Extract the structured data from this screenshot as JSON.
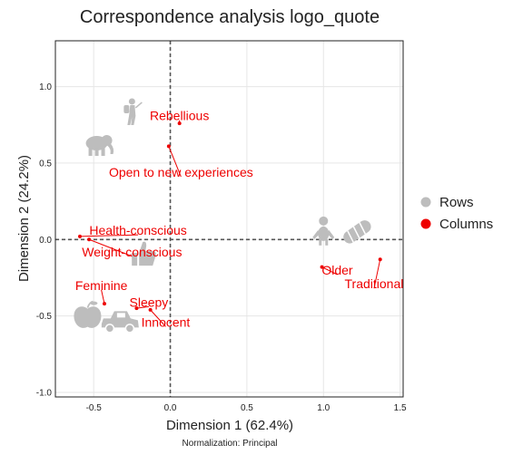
{
  "chart_data": {
    "type": "scatter",
    "title": "Correspondence analysis logo_quote",
    "xlabel": "Dimension 1 (62.4%)",
    "ylabel": "Dimension 2 (24.2%)",
    "note": "Normalization: Principal",
    "xlim": [
      -0.75,
      1.52
    ],
    "ylim": [
      -1.03,
      1.3
    ],
    "x_ticks": [
      {
        "value": -0.5,
        "label": "-0.5"
      },
      {
        "value": 0.0,
        "label": "0.0"
      },
      {
        "value": 0.5,
        "label": "0.5"
      },
      {
        "value": 1.0,
        "label": "1.0"
      },
      {
        "value": 1.5,
        "label": "1.5"
      }
    ],
    "y_ticks": [
      {
        "value": -1.0,
        "label": "-1.0"
      },
      {
        "value": -0.5,
        "label": "-0.5"
      },
      {
        "value": 0.0,
        "label": "0.0"
      },
      {
        "value": 0.5,
        "label": "0.5"
      },
      {
        "value": 1.0,
        "label": "1.0"
      }
    ],
    "grid": true,
    "legend_position": "right",
    "legend": [
      {
        "name": "Rows",
        "color": "#bdbdbd"
      },
      {
        "name": "Columns",
        "color": "#ee0000"
      }
    ],
    "columns": [
      {
        "label": "Rebellious",
        "x": 0.06,
        "y": 0.76,
        "lx": 0.06,
        "ly": 0.81
      },
      {
        "label": "Open to new experiences",
        "x": -0.01,
        "y": 0.61,
        "lx": 0.07,
        "ly": 0.44
      },
      {
        "label": "Health-conscious",
        "x": -0.59,
        "y": 0.02,
        "lx": -0.21,
        "ly": 0.06
      },
      {
        "label": "Weight-conscious",
        "x": -0.53,
        "y": 0.0,
        "lx": -0.25,
        "ly": -0.08
      },
      {
        "label": "Feminine",
        "x": -0.43,
        "y": -0.42,
        "lx": -0.45,
        "ly": -0.3
      },
      {
        "label": "Sleepy",
        "x": -0.22,
        "y": -0.45,
        "lx": -0.14,
        "ly": -0.41
      },
      {
        "label": "Innocent",
        "x": -0.13,
        "y": -0.46,
        "lx": -0.03,
        "ly": -0.54
      },
      {
        "label": "Older",
        "x": 0.99,
        "y": -0.18,
        "lx": 1.09,
        "ly": -0.2
      },
      {
        "label": "Traditional",
        "x": 1.37,
        "y": -0.13,
        "lx": 1.33,
        "ly": -0.29
      }
    ],
    "rows": [
      {
        "icon": "hiker-icon",
        "x": -0.25,
        "y": 0.82
      },
      {
        "icon": "elephant-icon",
        "x": -0.48,
        "y": 0.63
      },
      {
        "icon": "baby-icon",
        "x": 1.0,
        "y": 0.05
      },
      {
        "icon": "bread-icon",
        "x": 1.22,
        "y": 0.05
      },
      {
        "icon": "thumbs-up-icon",
        "x": -0.18,
        "y": -0.1
      },
      {
        "icon": "apple-icon",
        "x": -0.54,
        "y": -0.5
      },
      {
        "icon": "car-icon",
        "x": -0.33,
        "y": -0.54
      }
    ],
    "colors": {
      "columns": "#ee0000",
      "rows": "#bdbdbd",
      "grid": "#e6e6e6",
      "zero_line": "#555555"
    }
  }
}
